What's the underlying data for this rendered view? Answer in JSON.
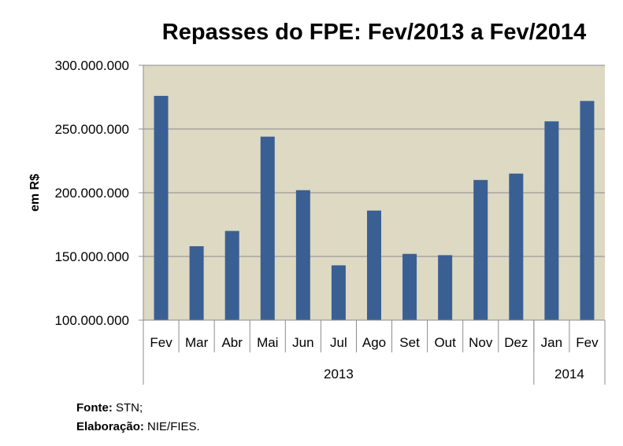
{
  "chart_data": {
    "type": "bar",
    "title": "Repasses do FPE: Fev/2013 a Fev/2014",
    "ylabel": "em R$",
    "xlabel": "",
    "ylim": [
      100000000,
      300000000
    ],
    "yticks": [
      100000000,
      150000000,
      200000000,
      250000000,
      300000000
    ],
    "ytick_labels": [
      "100.000.000",
      "150.000.000",
      "200.000.000",
      "250.000.000",
      "300.000.000"
    ],
    "categories": [
      "Fev",
      "Mar",
      "Abr",
      "Mai",
      "Jun",
      "Jul",
      "Ago",
      "Set",
      "Out",
      "Nov",
      "Dez",
      "Jan",
      "Fev"
    ],
    "groups": [
      {
        "label": "2013",
        "count": 11
      },
      {
        "label": "2014",
        "count": 2
      }
    ],
    "values": [
      276000000,
      158000000,
      170000000,
      244000000,
      202000000,
      143000000,
      186000000,
      152000000,
      151000000,
      210000000,
      215000000,
      256000000,
      272000000
    ],
    "grid": true,
    "colors": {
      "bar": "#3a5f93",
      "plot_bg": "#ddd9c3",
      "grid": "#8c8c8c"
    }
  },
  "footer": {
    "fonte_label": "Fonte:",
    "fonte_value": "STN;",
    "elab_label": "Elaboração:",
    "elab_value": "NIE/FIES."
  }
}
